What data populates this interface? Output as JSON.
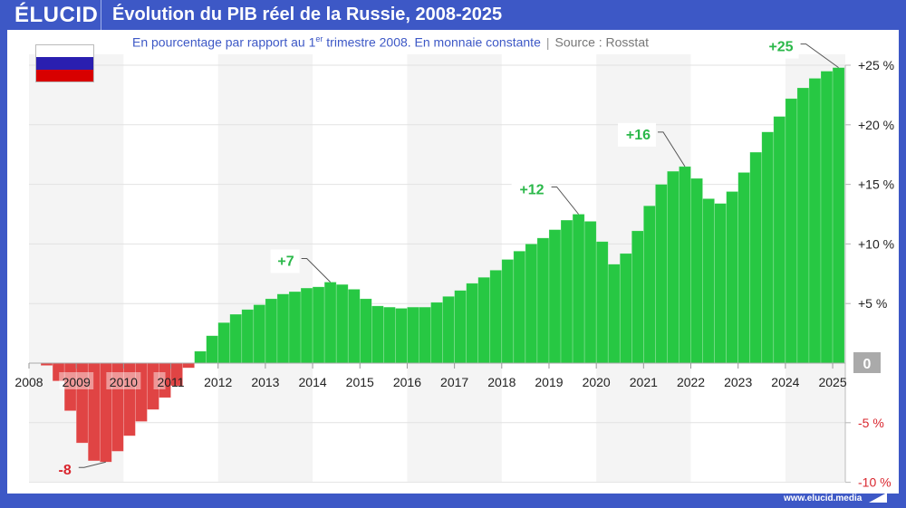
{
  "header": {
    "logo": "ÉLUCID",
    "title": "Évolution du PIB réel de la Russie, 2008-2025"
  },
  "subtitle": {
    "text_before": "En pourcentage par rapport au 1",
    "sup": "er",
    "text_after": " trimestre 2008. En monnaie constante",
    "separator": "|",
    "source": "Source : Rosstat"
  },
  "flag": {
    "country": "Russie",
    "colors": [
      "#ffffff",
      "#2a1fb0",
      "#d80000"
    ]
  },
  "footer": {
    "url": "www.elucid.media"
  },
  "colors": {
    "positive": "#27c843",
    "negative": "#e04444",
    "brand": "#3d58c6",
    "band": "#f4f4f4"
  },
  "chart_data": {
    "type": "bar",
    "title": "Évolution du PIB réel de la Russie, 2008-2025",
    "ylabel": "",
    "ylim": [
      -10,
      25
    ],
    "grid": true,
    "y_axis_position": "right",
    "x_ticks": [
      "2008",
      "2009",
      "2010",
      "2011",
      "2012",
      "2013",
      "2014",
      "2015",
      "2016",
      "2017",
      "2018",
      "2019",
      "2020",
      "2021",
      "2022",
      "2023",
      "2024",
      "2025"
    ],
    "y_ticks": [
      {
        "value": 25,
        "label": "+25 %"
      },
      {
        "value": 20,
        "label": "+20 %"
      },
      {
        "value": 15,
        "label": "+15 %"
      },
      {
        "value": 10,
        "label": "+10 %"
      },
      {
        "value": 5,
        "label": "+5 %"
      },
      {
        "value": 0,
        "label": "0"
      },
      {
        "value": -5,
        "label": "-5 %"
      },
      {
        "value": -10,
        "label": "-10 %"
      }
    ],
    "x": [
      "2008-T2",
      "2008-T3",
      "2008-T4",
      "2009-T1",
      "2009-T2",
      "2009-T3",
      "2009-T4",
      "2010-T1",
      "2010-T2",
      "2010-T3",
      "2010-T4",
      "2011-T1",
      "2011-T2",
      "2011-T3",
      "2011-T4",
      "2012-T1",
      "2012-T2",
      "2012-T3",
      "2012-T4",
      "2013-T1",
      "2013-T2",
      "2013-T3",
      "2013-T4",
      "2014-T1",
      "2014-T2",
      "2014-T3",
      "2014-T4",
      "2015-T1",
      "2015-T2",
      "2015-T3",
      "2015-T4",
      "2016-T1",
      "2016-T2",
      "2016-T3",
      "2016-T4",
      "2017-T1",
      "2017-T2",
      "2017-T3",
      "2017-T4",
      "2018-T1",
      "2018-T2",
      "2018-T3",
      "2018-T4",
      "2019-T1",
      "2019-T2",
      "2019-T3",
      "2019-T4",
      "2020-T1",
      "2020-T2",
      "2020-T3",
      "2020-T4",
      "2021-T1",
      "2021-T2",
      "2021-T3",
      "2021-T4",
      "2022-T1",
      "2022-T2",
      "2022-T3",
      "2022-T4",
      "2023-T1",
      "2023-T2",
      "2023-T3",
      "2023-T4",
      "2024-T1",
      "2024-T2",
      "2024-T3",
      "2024-T4",
      "2025-T1"
    ],
    "values": [
      -0.2,
      -1.5,
      -4.0,
      -6.7,
      -8.2,
      -8.3,
      -7.4,
      -6.1,
      -4.9,
      -3.9,
      -2.9,
      -1.9,
      -0.4,
      1.0,
      2.3,
      3.4,
      4.1,
      4.5,
      4.9,
      5.4,
      5.8,
      6.0,
      6.3,
      6.4,
      6.8,
      6.6,
      6.2,
      5.4,
      4.8,
      4.7,
      4.6,
      4.7,
      4.7,
      5.1,
      5.6,
      6.1,
      6.7,
      7.2,
      7.8,
      8.7,
      9.4,
      10.0,
      10.5,
      11.2,
      12.0,
      12.5,
      11.9,
      10.2,
      8.3,
      9.2,
      11.1,
      13.2,
      15.0,
      16.1,
      16.5,
      15.5,
      13.8,
      13.4,
      14.4,
      16.0,
      17.7,
      19.4,
      20.7,
      22.2,
      23.1,
      23.9,
      24.5,
      24.8
    ],
    "annotations": [
      {
        "text": "-8",
        "x": "2009-T3"
      },
      {
        "text": "+7",
        "x": "2014-T2"
      },
      {
        "text": "+12",
        "x": "2019-T3"
      },
      {
        "text": "+16",
        "x": "2021-T4"
      },
      {
        "text": "+25",
        "x": "2025-T1"
      }
    ]
  }
}
